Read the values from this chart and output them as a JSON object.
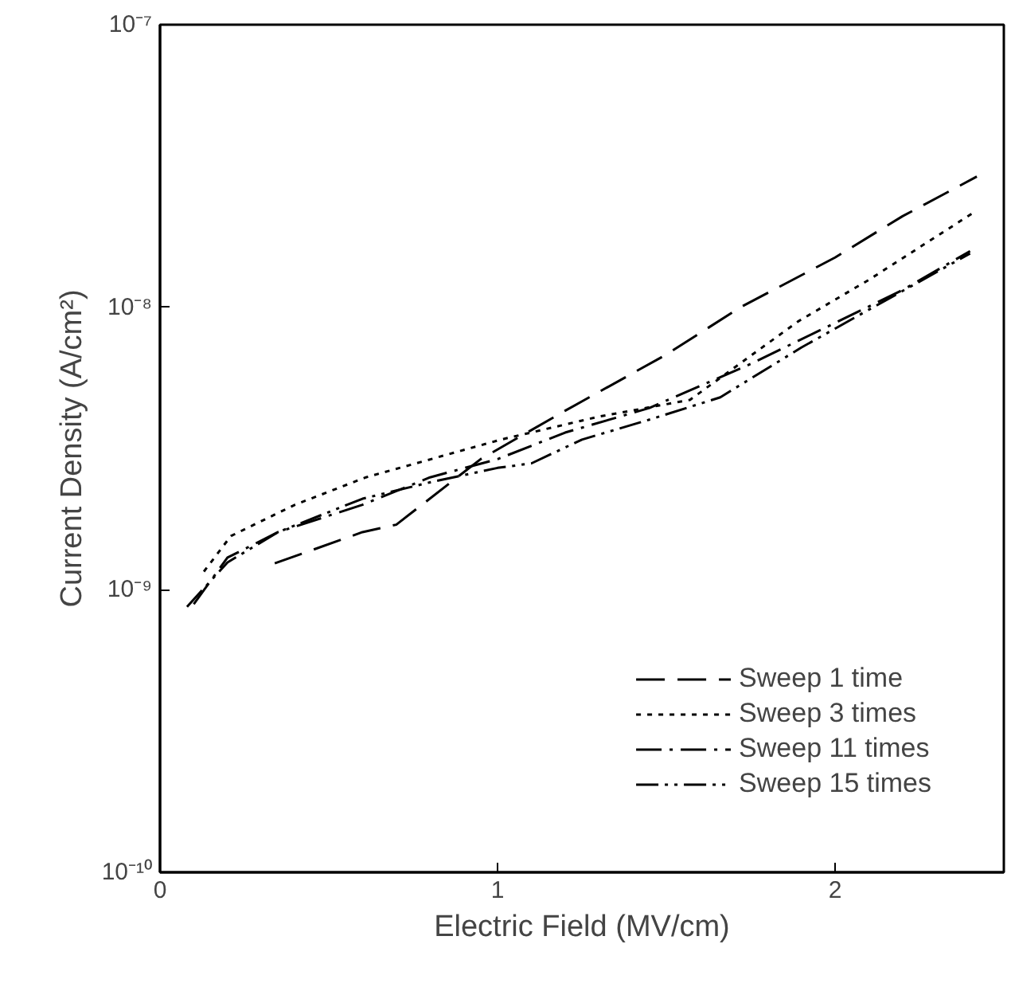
{
  "chart_data": {
    "type": "line",
    "xlabel": "Electric Field (MV/cm)",
    "ylabel": "Current Density (A/cm²)",
    "log": "y",
    "grid": false,
    "legend": "bottom right",
    "xlim": [
      0,
      2.5
    ],
    "ylim": [
      1e-10,
      1e-07
    ],
    "xticks": [
      0,
      1,
      2
    ],
    "yticks": [
      {
        "value": 1e-10,
        "label": "10⁻¹⁰"
      },
      {
        "value": 1e-09,
        "label": "10⁻⁹"
      },
      {
        "value": 1e-08,
        "label": "10⁻⁸"
      },
      {
        "value": 1e-07,
        "label": "10⁻⁷"
      }
    ],
    "series": [
      {
        "name": "Sweep 1 time",
        "color": "#000000",
        "line_style": "dashed",
        "x": [
          0.34,
          0.6,
          0.7,
          0.95,
          1.2,
          1.5,
          1.72,
          2.0,
          2.2,
          2.42
        ],
        "values": [
          1.24e-09,
          1.6e-09,
          1.7e-09,
          2.9e-09,
          4.3e-09,
          6.8e-09,
          1e-08,
          1.5e-08,
          2.1e-08,
          2.9e-08
        ]
      },
      {
        "name": "Sweep 3 times",
        "color": "#000000",
        "line_style": "dotted",
        "x": [
          0.13,
          0.21,
          0.4,
          0.61,
          1.01,
          1.3,
          1.57,
          1.89,
          2.1,
          2.42
        ],
        "values": [
          1.16e-09,
          1.55e-09,
          2e-09,
          2.5e-09,
          3.4e-09,
          4.1e-09,
          4.7e-09,
          8.9e-09,
          1.25e-08,
          2.2e-08
        ]
      },
      {
        "name": "Sweep 11 times",
        "color": "#000000",
        "line_style": "dashdot",
        "x": [
          0.1,
          0.2,
          0.35,
          0.6,
          0.8,
          1.0,
          1.2,
          1.45,
          1.75,
          2.0,
          2.2,
          2.4
        ],
        "values": [
          8.9e-10,
          1.3e-09,
          1.6e-09,
          2e-09,
          2.5e-09,
          2.9e-09,
          3.6e-09,
          4.4e-09,
          6.3e-09,
          8.8e-09,
          1.15e-08,
          1.58e-08
        ]
      },
      {
        "name": "Sweep 15 times",
        "color": "#000000",
        "line_style": "dashdotdot",
        "x": [
          0.08,
          0.2,
          0.35,
          0.6,
          0.8,
          1.0,
          1.1,
          1.25,
          1.45,
          1.66,
          1.9,
          2.1,
          2.4
        ],
        "values": [
          8.7e-10,
          1.25e-09,
          1.6e-09,
          2.1e-09,
          2.4e-09,
          2.7e-09,
          2.8e-09,
          3.4e-09,
          4e-09,
          4.8e-09,
          7.2e-09,
          9.8e-09,
          1.55e-08
        ]
      }
    ]
  }
}
